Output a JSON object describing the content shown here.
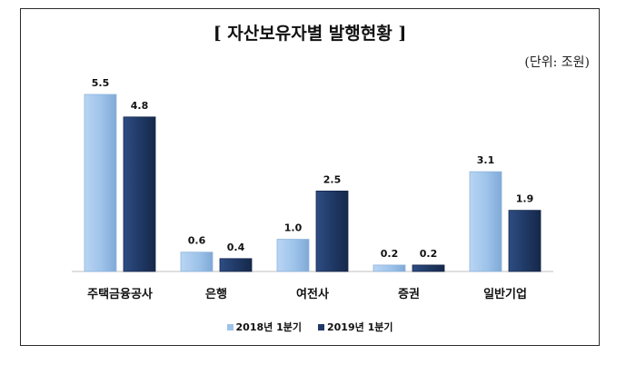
{
  "chart_data": {
    "type": "bar",
    "title": "[ 자산보유자별 발행현황 ]",
    "unit_note": "(단위: 조원)",
    "categories": [
      "주택금융공사",
      "은행",
      "여전사",
      "증권",
      "일반기업"
    ],
    "series": [
      {
        "name": "2018년 1분기",
        "values": [
          5.5,
          0.6,
          1.0,
          0.2,
          3.1
        ],
        "color": "#9dc3ea"
      },
      {
        "name": "2019년 1분기",
        "values": [
          4.8,
          0.4,
          2.5,
          0.2,
          1.9
        ],
        "color": "#1f3864"
      }
    ],
    "value_labels": [
      [
        "5.5",
        "0.6",
        "1.0",
        "0.2",
        "3.1"
      ],
      [
        "4.8",
        "0.4",
        "2.5",
        "0.2",
        "1.9"
      ]
    ],
    "ylim": [
      0,
      5.5
    ],
    "grid": false,
    "legend_position": "bottom"
  }
}
